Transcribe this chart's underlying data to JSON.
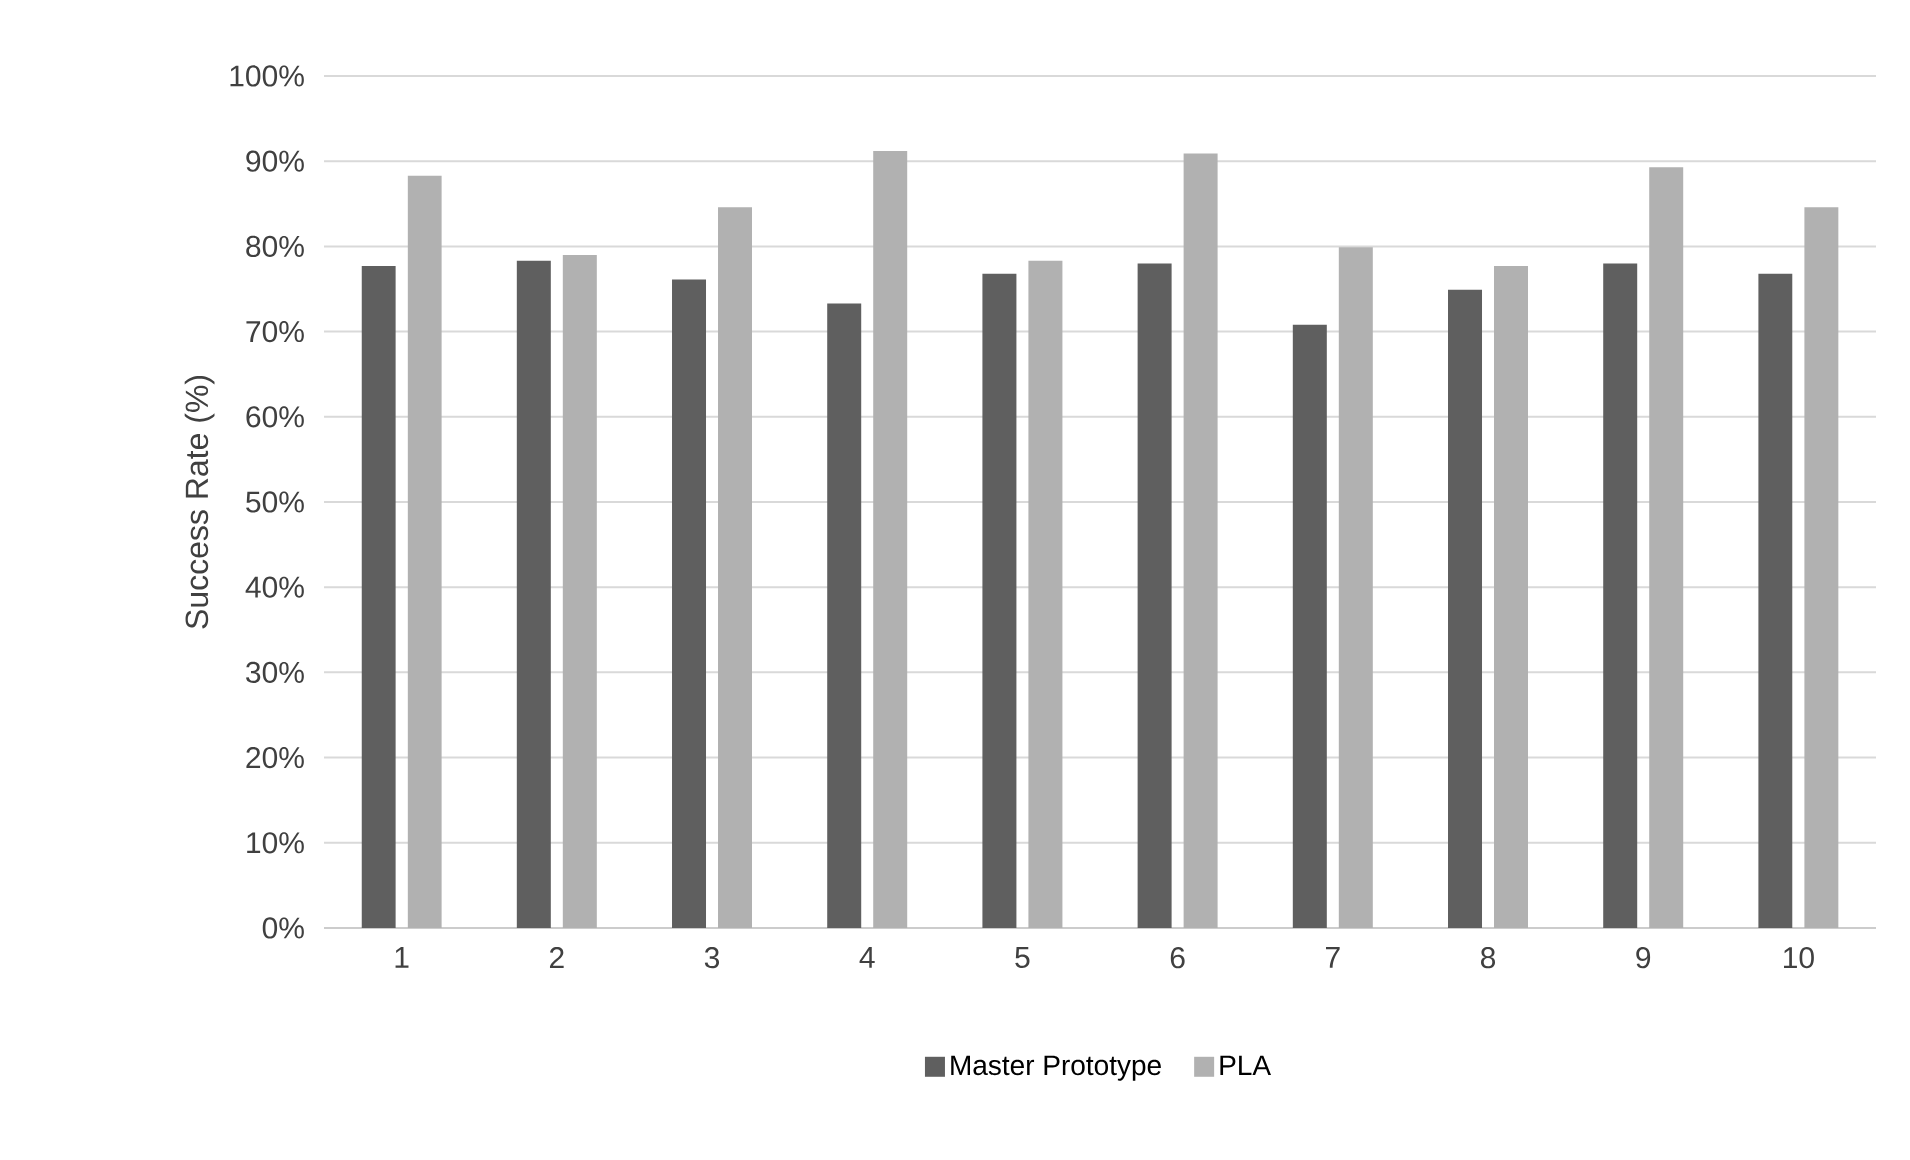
{
  "chart_data": {
    "type": "bar",
    "ylabel": "Success Rate (%)",
    "categories": [
      "1",
      "2",
      "3",
      "4",
      "5",
      "6",
      "7",
      "8",
      "9",
      "10"
    ],
    "series": [
      {
        "name": "Master Prototype",
        "color": "#5f5f5f",
        "values": [
          77.7,
          78.3,
          76.1,
          73.3,
          76.8,
          78.0,
          70.8,
          74.9,
          78.0,
          76.8
        ]
      },
      {
        "name": "PLA",
        "color": "#b1b1b1",
        "values": [
          88.3,
          79.0,
          84.6,
          91.2,
          78.3,
          90.9,
          79.9,
          77.7,
          89.3,
          84.6
        ]
      }
    ],
    "ylim": [
      0,
      100
    ],
    "yticks": [
      {
        "value": 0,
        "label": "0%"
      },
      {
        "value": 10,
        "label": "10%"
      },
      {
        "value": 20,
        "label": "20%"
      },
      {
        "value": 30,
        "label": "30%"
      },
      {
        "value": 40,
        "label": "40%"
      },
      {
        "value": 50,
        "label": "50%"
      },
      {
        "value": 60,
        "label": "60%"
      },
      {
        "value": 70,
        "label": "70%"
      },
      {
        "value": 80,
        "label": "80%"
      },
      {
        "value": 90,
        "label": "90%"
      },
      {
        "value": 100,
        "label": "100%"
      }
    ],
    "grid": "y",
    "legend": "bottom"
  }
}
